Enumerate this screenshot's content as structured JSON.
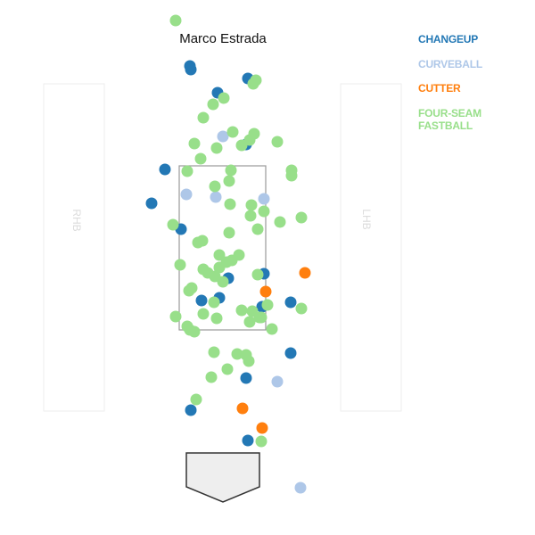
{
  "title": "Marco Estrada",
  "batter_boxes": {
    "left_label": "RHB",
    "right_label": "LHB"
  },
  "colors": {
    "changeup": "#2378b5",
    "curveball": "#aec7e8",
    "cutter": "#ff7f0e",
    "fourseam": "#98df8a",
    "strike_zone": "#999999",
    "batter_box_border": "#eeeeee",
    "home_plate_fill": "#eeeeee",
    "home_plate_stroke": "#333333"
  },
  "chart_data": {
    "type": "scatter",
    "title": "Marco Estrada",
    "xlabel": "",
    "ylabel": "",
    "grid": false,
    "legend_position": "top-right",
    "series": [
      {
        "name": "CHANGEUP",
        "color": "#2378b5",
        "points": [
          [
            213,
            74
          ],
          [
            214,
            78
          ],
          [
            278,
            88
          ],
          [
            244,
            104
          ],
          [
            185,
            190
          ],
          [
            276,
            162
          ],
          [
            170,
            228
          ],
          [
            203,
            257
          ],
          [
            296,
            307
          ],
          [
            256,
            312
          ],
          [
            226,
            337
          ],
          [
            246,
            334
          ],
          [
            294,
            344
          ],
          [
            326,
            339
          ],
          [
            326,
            396
          ],
          [
            276,
            424
          ],
          [
            214,
            460
          ],
          [
            278,
            494
          ]
        ]
      },
      {
        "name": "CURVEBALL",
        "color": "#aec7e8",
        "points": [
          [
            250,
            153
          ],
          [
            209,
            218
          ],
          [
            242,
            221
          ],
          [
            296,
            223
          ],
          [
            311,
            428
          ],
          [
            337,
            547
          ]
        ]
      },
      {
        "name": "CUTTER",
        "color": "#ff7f0e",
        "points": [
          [
            342,
            306
          ],
          [
            298,
            327
          ],
          [
            272,
            458
          ],
          [
            294,
            480
          ]
        ]
      },
      {
        "name": "FOUR-SEAM FASTBALL",
        "color": "#98df8a",
        "points": [
          [
            197,
            23
          ],
          [
            287,
            90
          ],
          [
            284,
            94
          ],
          [
            251,
            110
          ],
          [
            239,
            117
          ],
          [
            228,
            132
          ],
          [
            261,
            148
          ],
          [
            285,
            150
          ],
          [
            280,
            157
          ],
          [
            271,
            163
          ],
          [
            311,
            159
          ],
          [
            218,
            161
          ],
          [
            243,
            166
          ],
          [
            225,
            178
          ],
          [
            327,
            191
          ],
          [
            327,
            197
          ],
          [
            210,
            192
          ],
          [
            259,
            191
          ],
          [
            241,
            209
          ],
          [
            257,
            203
          ],
          [
            258,
            229
          ],
          [
            282,
            230
          ],
          [
            296,
            237
          ],
          [
            281,
            242
          ],
          [
            314,
            249
          ],
          [
            338,
            244
          ],
          [
            194,
            252
          ],
          [
            289,
            257
          ],
          [
            257,
            261
          ],
          [
            222,
            272
          ],
          [
            227,
            270
          ],
          [
            268,
            286
          ],
          [
            246,
            286
          ],
          [
            260,
            292
          ],
          [
            254,
            294
          ],
          [
            246,
            300
          ],
          [
            202,
            297
          ],
          [
            228,
            302
          ],
          [
            233,
            306
          ],
          [
            241,
            310
          ],
          [
            250,
            316
          ],
          [
            289,
            308
          ],
          [
            215,
            323
          ],
          [
            212,
            326
          ],
          [
            240,
            339
          ],
          [
            300,
            342
          ],
          [
            283,
            349
          ],
          [
            228,
            352
          ],
          [
            243,
            357
          ],
          [
            271,
            348
          ],
          [
            197,
            355
          ],
          [
            210,
            366
          ],
          [
            213,
            370
          ],
          [
            218,
            372
          ],
          [
            293,
            356
          ],
          [
            291,
            356
          ],
          [
            280,
            361
          ],
          [
            305,
            369
          ],
          [
            338,
            346
          ],
          [
            240,
            395
          ],
          [
            266,
            397
          ],
          [
            276,
            398
          ],
          [
            279,
            405
          ],
          [
            255,
            414
          ],
          [
            237,
            423
          ],
          [
            220,
            448
          ],
          [
            293,
            495
          ]
        ]
      }
    ]
  },
  "legend": [
    {
      "label": "CHANGEUP",
      "color": "#2378b5"
    },
    {
      "label": "CURVEBALL",
      "color": "#aec7e8"
    },
    {
      "label": "CUTTER",
      "color": "#ff7f0e"
    },
    {
      "label": "FOUR-SEAM FASTBALL",
      "color": "#98df8a"
    }
  ]
}
